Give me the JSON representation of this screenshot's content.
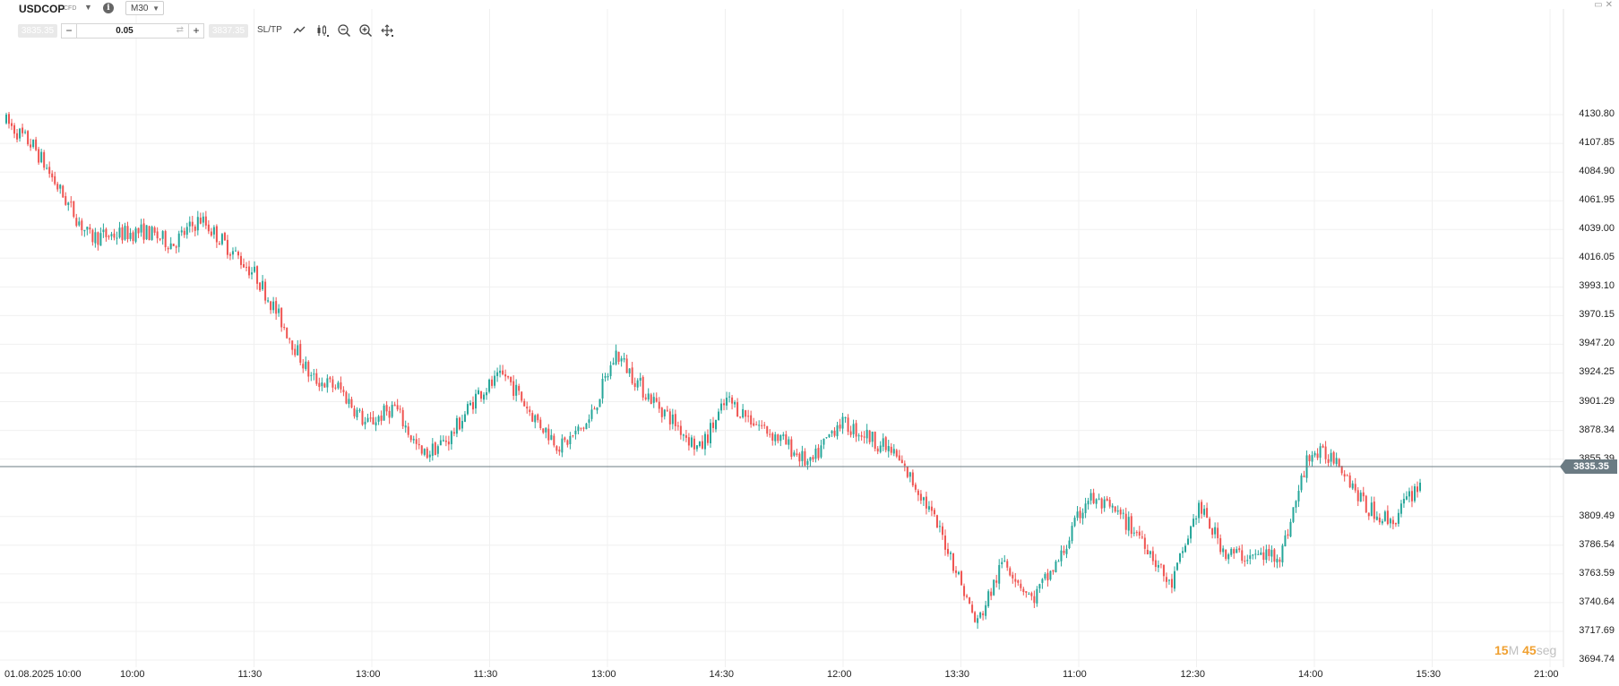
{
  "header": {
    "symbol": "USDCOP",
    "instrument_type": "CFD",
    "timeframe": "M30",
    "info_icon": "info-icon"
  },
  "trade_bar": {
    "bid_price": "3835.35",
    "ask_price": "3837.35",
    "quantity": "0.05",
    "sltp_label": "SL/TP",
    "tools": [
      "line-chart-icon",
      "candle-type-icon",
      "zoom-out-icon",
      "zoom-in-icon",
      "crosshair-icon"
    ]
  },
  "price_axis": {
    "labels": [
      "4130.80",
      "4107.85",
      "4084.90",
      "4061.95",
      "4039.00",
      "4016.05",
      "3993.10",
      "3970.15",
      "3947.20",
      "3924.25",
      "3901.29",
      "3878.34",
      "3855.39",
      "3809.49",
      "3786.54",
      "3763.59",
      "3740.64",
      "3717.69",
      "3694.74"
    ],
    "current_price": "3835.35"
  },
  "time_axis": {
    "labels": [
      "01.08.2025 10:00",
      "10:00",
      "11:30",
      "13:00",
      "11:30",
      "13:00",
      "14:30",
      "12:00",
      "13:30",
      "11:00",
      "12:30",
      "14:00",
      "15:30",
      "21:00"
    ]
  },
  "countdown": {
    "minutes": "15",
    "minutes_unit": "M",
    "seconds": "45",
    "seconds_unit": "seg"
  },
  "colors": {
    "up": "#26a69a",
    "down": "#ef5350",
    "grid": "#f0f0f0",
    "price_line": "#6b7b83"
  },
  "chart_data": {
    "type": "candlestick",
    "ylim": [
      3694.74,
      4135
    ],
    "waypoints": [
      [
        4125,
        4125
      ],
      [
        4110,
        4100
      ],
      [
        4060,
        4075
      ],
      [
        4045,
        4020
      ],
      [
        4030,
        4040
      ],
      [
        4050,
        4025
      ],
      [
        4045,
        4010
      ],
      [
        4060,
        4035
      ],
      [
        4020,
        4030
      ],
      [
        4015,
        3990
      ],
      [
        3965,
        3960
      ],
      [
        3925,
        3915
      ],
      [
        3915,
        3910
      ],
      [
        3895,
        3870
      ],
      [
        3900,
        3895
      ],
      [
        3875,
        3840
      ],
      [
        3860,
        3885
      ],
      [
        3920,
        3895
      ],
      [
        3940,
        3905
      ],
      [
        3895,
        3885
      ],
      [
        3880,
        3850
      ],
      [
        3875,
        3895
      ],
      [
        3935,
        3945
      ],
      [
        3910,
        3910
      ],
      [
        3895,
        3880
      ],
      [
        3850,
        3875
      ],
      [
        3900,
        3905
      ],
      [
        3880,
        3890
      ],
      [
        3870,
        3870
      ],
      [
        3855,
        3845
      ],
      [
        3890,
        3880
      ],
      [
        3875,
        3875
      ],
      [
        3865,
        3855
      ],
      [
        3845,
        3810
      ],
      [
        3790,
        3775
      ],
      [
        3730,
        3715
      ],
      [
        3760,
        3790
      ],
      [
        3755,
        3730
      ],
      [
        3760,
        3790
      ],
      [
        3820,
        3830
      ],
      [
        3810,
        3815
      ],
      [
        3810,
        3775
      ],
      [
        3750,
        3755
      ],
      [
        3810,
        3825
      ],
      [
        3790,
        3770
      ],
      [
        3765,
        3790
      ],
      [
        3800,
        3760
      ],
      [
        3845,
        3875
      ],
      [
        3865,
        3850
      ],
      [
        3820,
        3815
      ],
      [
        3790,
        3820
      ],
      [
        3835,
        3840
      ]
    ]
  }
}
